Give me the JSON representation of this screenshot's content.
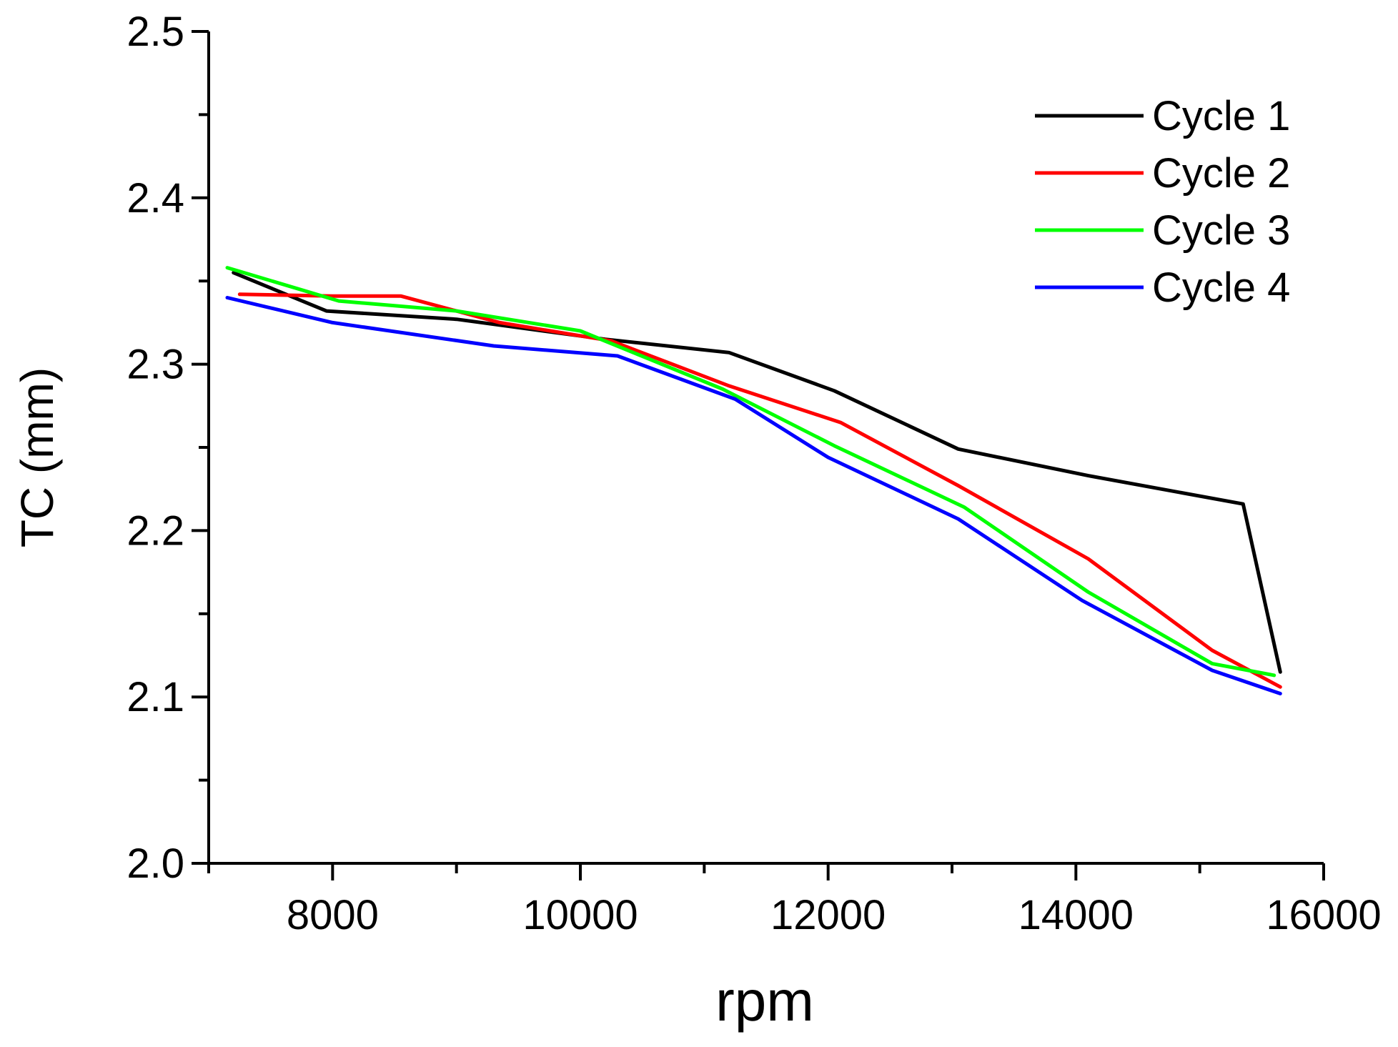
{
  "chart_data": {
    "type": "line",
    "title": "",
    "xlabel": "rpm",
    "ylabel": "TC (mm)",
    "xlim": [
      7000,
      16000
    ],
    "ylim": [
      2.0,
      2.5
    ],
    "xticks": [
      8000,
      10000,
      12000,
      14000,
      16000
    ],
    "xtick_labels": [
      "8000",
      "10000",
      "12000",
      "14000",
      "16000"
    ],
    "yticks": [
      2.0,
      2.1,
      2.2,
      2.3,
      2.4,
      2.5
    ],
    "ytick_labels": [
      "2.0",
      "2.1",
      "2.2",
      "2.3",
      "2.4",
      "2.5"
    ],
    "grid": false,
    "legend_position": "top-right",
    "series": [
      {
        "name": "Cycle 1",
        "color": "#000000",
        "x": [
          7200,
          7950,
          9000,
          10200,
          11200,
          12050,
          13050,
          14100,
          15350,
          15650
        ],
        "y": [
          2.355,
          2.332,
          2.327,
          2.315,
          2.307,
          2.284,
          2.249,
          2.233,
          2.216,
          2.115
        ]
      },
      {
        "name": "Cycle 2",
        "color": "#ff0000",
        "x": [
          7250,
          8000,
          8550,
          9350,
          10250,
          11200,
          12100,
          13050,
          14100,
          15100,
          15650
        ],
        "y": [
          2.342,
          2.341,
          2.341,
          2.325,
          2.314,
          2.287,
          2.265,
          2.227,
          2.183,
          2.128,
          2.106
        ]
      },
      {
        "name": "Cycle 3",
        "color": "#00ff00",
        "x": [
          7150,
          8050,
          9000,
          10000,
          11150,
          12050,
          13100,
          14100,
          15100,
          15600
        ],
        "y": [
          2.358,
          2.338,
          2.332,
          2.32,
          2.285,
          2.251,
          2.214,
          2.163,
          2.12,
          2.113
        ]
      },
      {
        "name": "Cycle 4",
        "color": "#0000ff",
        "x": [
          7150,
          8000,
          9300,
          10300,
          11250,
          12000,
          13050,
          14050,
          15100,
          15650
        ],
        "y": [
          2.34,
          2.325,
          2.311,
          2.305,
          2.279,
          2.244,
          2.207,
          2.158,
          2.116,
          2.102
        ]
      }
    ]
  }
}
